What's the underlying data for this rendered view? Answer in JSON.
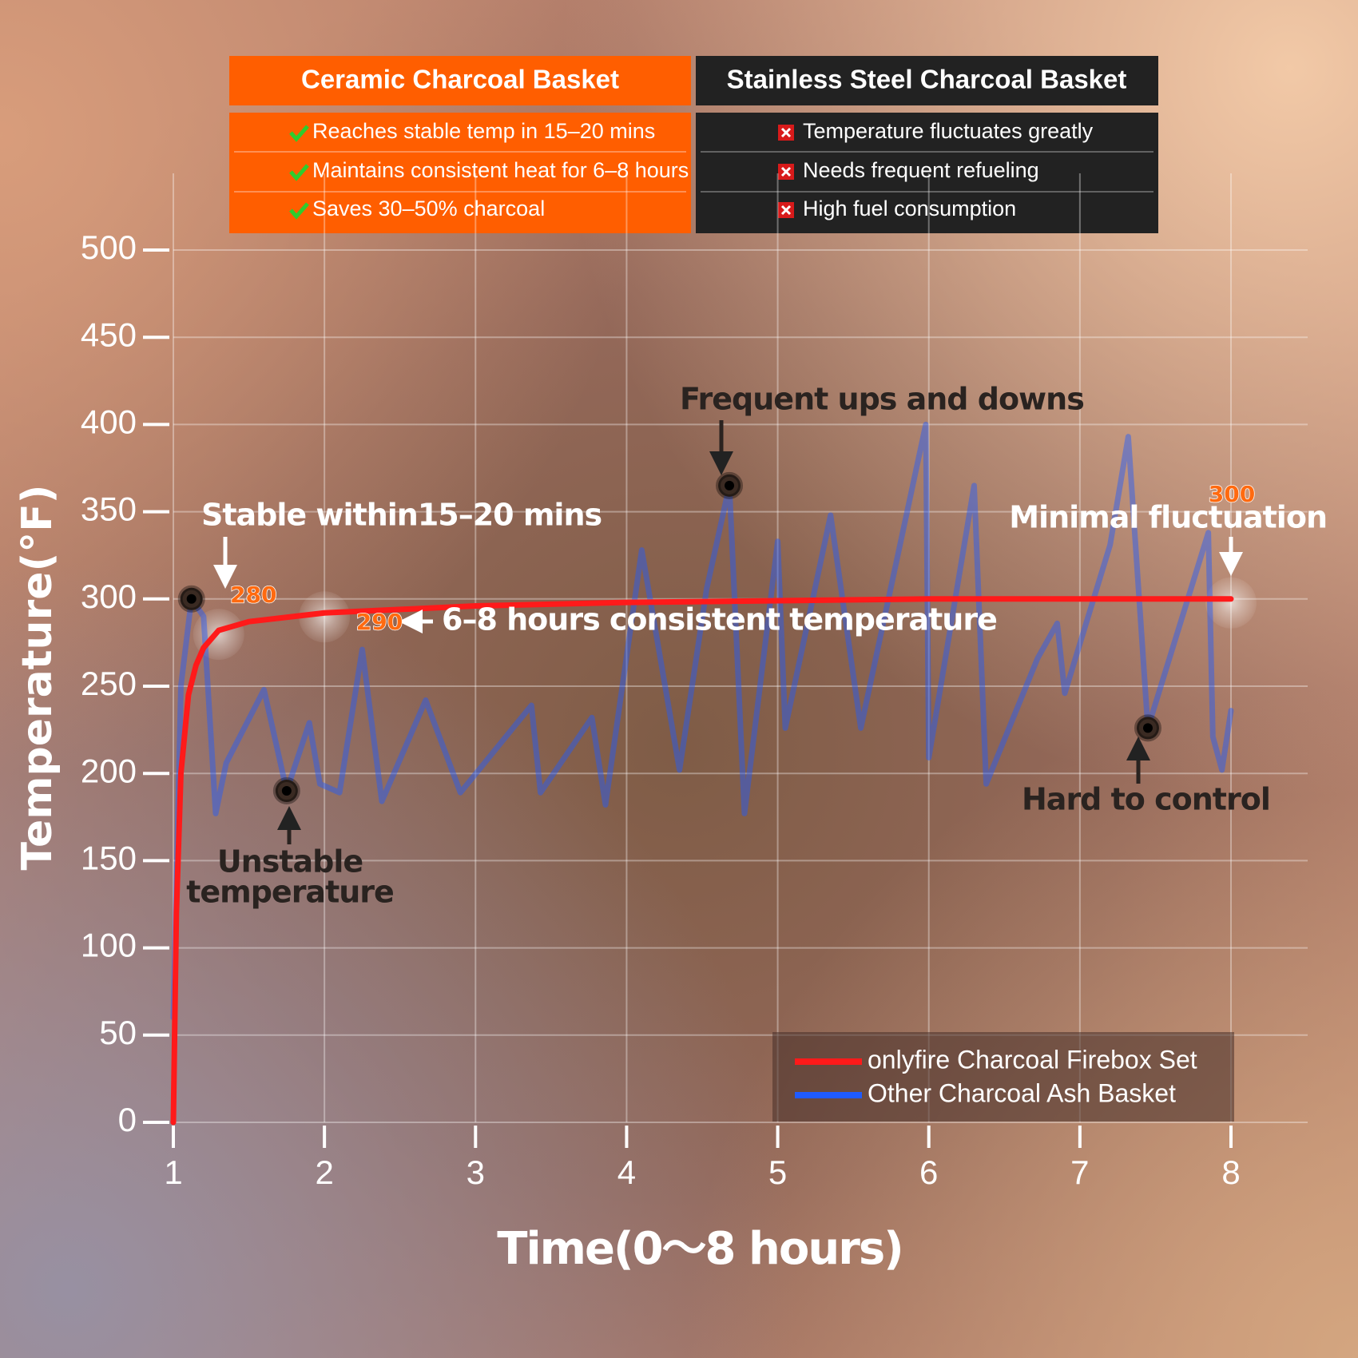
{
  "comparison": {
    "left": {
      "header": "Ceramic Charcoal Basket",
      "rows": [
        "Reaches stable temp in 15–20 mins",
        "Maintains consistent heat for 6–8 hours",
        "Saves 30–50% charcoal"
      ]
    },
    "right": {
      "header": "Stainless Steel Charcoal Basket",
      "rows": [
        "Temperature fluctuates greatly",
        "Needs frequent refueling",
        "High fuel consumption"
      ]
    }
  },
  "chart_data": {
    "type": "line",
    "y_label": "Temperature(°F)",
    "x_label": "Time(0～8 hours)",
    "xlim": [
      1,
      8
    ],
    "xticks": [
      1,
      2,
      3,
      4,
      5,
      6,
      7,
      8
    ],
    "ylim": [
      0,
      500
    ],
    "yticks": [
      0,
      50,
      100,
      150,
      200,
      250,
      300,
      350,
      400,
      450,
      500
    ],
    "grid": true,
    "legend": "lower right",
    "series": [
      {
        "name": "onlyfire Charcoal Firebox Set",
        "color": "#ff1a1a",
        "x": [
          1,
          1.02,
          1.05,
          1.1,
          1.15,
          1.2,
          1.3,
          1.5,
          2,
          3,
          4,
          5,
          6,
          7,
          8
        ],
        "values": [
          0,
          120,
          200,
          245,
          262,
          272,
          282,
          287,
          292,
          296,
          298,
          299,
          300,
          300,
          300
        ]
      },
      {
        "name": "Other  Charcoal Ash Basket",
        "color": "#1f5bff",
        "x": [
          1.0,
          1.05,
          1.12,
          1.2,
          1.28,
          1.35,
          1.6,
          1.75,
          1.9,
          1.97,
          2.1,
          2.25,
          2.38,
          2.67,
          2.9,
          3.37,
          3.43,
          3.77,
          3.86,
          4.1,
          4.35,
          4.53,
          4.68,
          4.78,
          5.0,
          5.05,
          5.35,
          5.55,
          5.98,
          6.0,
          6.3,
          6.38,
          6.72,
          6.85,
          6.9,
          7.2,
          7.32,
          7.45,
          7.85,
          7.88,
          7.94,
          8.0
        ],
        "values": [
          60,
          250,
          300,
          290,
          177,
          206,
          248,
          190,
          229,
          194,
          189,
          271,
          184,
          242,
          189,
          239,
          189,
          232,
          182,
          328,
          202,
          306,
          365,
          177,
          333,
          226,
          348,
          226,
          400,
          209,
          365,
          194,
          266,
          286,
          246,
          331,
          393,
          226,
          338,
          221,
          202,
          236
        ]
      }
    ],
    "callouts": [
      280,
      290,
      300
    ],
    "annotations": [
      "Stable within15–20 mins",
      "Frequent ups and downs",
      "Minimal fluctuation",
      "6–8 hours consistent temperature",
      "Hard to control",
      [
        "Unstable",
        "temperature"
      ]
    ]
  }
}
